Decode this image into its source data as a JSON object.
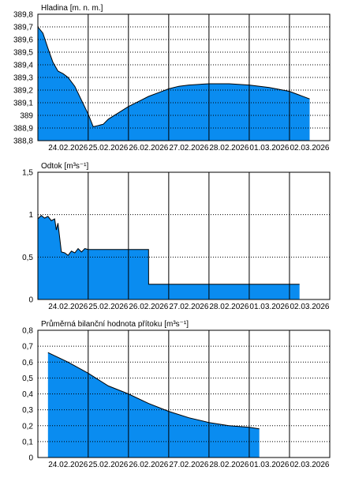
{
  "colors": {
    "fill": "#0a8cf0",
    "line": "#000000",
    "grid": "#000000",
    "background": "#ffffff"
  },
  "chart_data": [
    {
      "type": "area",
      "title": "Hladina [m. n. m.]",
      "ylim": [
        388.8,
        389.8
      ],
      "yticks": [
        "388,8",
        "388,9",
        "389",
        "389,1",
        "389,2",
        "389,3",
        "389,4",
        "389,5",
        "389,6",
        "389,7",
        "389,8"
      ],
      "xticks": [
        "24.02.2026",
        "25.02.2026",
        "26.02.2026",
        "27.02.2026",
        "28.02.2026",
        "01.03.2026",
        "02.03.2026"
      ],
      "xlim": [
        "23.02.2026 18:00",
        "03.03.2026 00:00"
      ],
      "grid": true,
      "x": [
        "23.02.2026 18:00",
        "23.02.2026 21:00",
        "24.02.2026 00:00",
        "24.02.2026 03:00",
        "24.02.2026 06:00",
        "24.02.2026 09:00",
        "24.02.2026 12:00",
        "24.02.2026 16:00",
        "24.02.2026 20:00",
        "25.02.2026 00:00",
        "25.02.2026 03:00",
        "25.02.2026 06:00",
        "25.02.2026 09:00",
        "25.02.2026 12:00",
        "25.02.2026 18:00",
        "26.02.2026 00:00",
        "26.02.2026 06:00",
        "26.02.2026 12:00",
        "26.02.2026 18:00",
        "27.02.2026 00:00",
        "27.02.2026 06:00",
        "27.02.2026 12:00",
        "28.02.2026 00:00",
        "28.02.2026 12:00",
        "01.03.2026 00:00",
        "01.03.2026 12:00",
        "02.03.2026 00:00",
        "02.03.2026 06:00",
        "02.03.2026 12:00"
      ],
      "values": [
        389.7,
        389.65,
        389.53,
        389.42,
        389.35,
        389.33,
        389.3,
        389.23,
        389.12,
        389.01,
        388.91,
        388.92,
        388.93,
        388.97,
        389.02,
        389.07,
        389.11,
        389.15,
        389.18,
        389.21,
        389.23,
        389.24,
        389.25,
        389.25,
        389.24,
        389.22,
        389.19,
        389.16,
        389.13
      ]
    },
    {
      "type": "area",
      "title": "Odtok [m³s⁻¹]",
      "ylim": [
        0,
        1.5
      ],
      "yticks": [
        "0",
        "0,5",
        "1",
        "1,5"
      ],
      "xticks": [
        "24.02.2026",
        "25.02.2026",
        "26.02.2026",
        "27.02.2026",
        "28.02.2026",
        "01.03.2026",
        "02.03.2026"
      ],
      "xlim": [
        "23.02.2026 18:00",
        "03.03.2026 00:00"
      ],
      "grid": true,
      "x": [
        "23.02.2026 18:00",
        "23.02.2026 20:00",
        "23.02.2026 22:00",
        "24.02.2026 00:00",
        "24.02.2026 02:00",
        "24.02.2026 04:00",
        "24.02.2026 05:00",
        "24.02.2026 06:00",
        "24.02.2026 08:00",
        "24.02.2026 10:00",
        "24.02.2026 12:00",
        "24.02.2026 14:00",
        "24.02.2026 16:00",
        "24.02.2026 18:00",
        "24.02.2026 20:00",
        "24.02.2026 22:00",
        "25.02.2026 00:00",
        "25.02.2026 12:00",
        "26.02.2026 00:00",
        "26.02.2026 12:00",
        "26.02.2026 12:01",
        "27.02.2026 00:00",
        "27.02.2026 12:00",
        "28.02.2026 00:00",
        "28.02.2026 12:00",
        "01.03.2026 00:00",
        "01.03.2026 12:00",
        "02.03.2026 00:00",
        "02.03.2026 06:00"
      ],
      "values": [
        0.95,
        0.99,
        0.96,
        0.98,
        0.93,
        0.95,
        0.82,
        0.9,
        0.56,
        0.55,
        0.52,
        0.57,
        0.55,
        0.6,
        0.56,
        0.6,
        0.59,
        0.59,
        0.59,
        0.59,
        0.18,
        0.18,
        0.18,
        0.18,
        0.18,
        0.18,
        0.18,
        0.18,
        0.18
      ]
    },
    {
      "type": "area",
      "title": "Průměrná bilanční hodnota přítoku [m³s⁻¹]",
      "ylim": [
        0,
        0.8
      ],
      "yticks": [
        "0",
        "0,1",
        "0,2",
        "0,3",
        "0,4",
        "0,5",
        "0,6",
        "0,7",
        "0,8"
      ],
      "xticks": [
        "24.02.2026",
        "25.02.2026",
        "26.02.2026",
        "27.02.2026",
        "28.02.2026",
        "01.03.2026",
        "02.03.2026"
      ],
      "xlim": [
        "23.02.2026 18:00",
        "03.03.2026 00:00"
      ],
      "grid": true,
      "x": [
        "24.02.2026 00:00",
        "24.02.2026 12:00",
        "25.02.2026 00:00",
        "25.02.2026 06:00",
        "25.02.2026 12:00",
        "26.02.2026 00:00",
        "26.02.2026 12:00",
        "27.02.2026 00:00",
        "27.02.2026 12:00",
        "28.02.2026 00:00",
        "28.02.2026 12:00",
        "01.03.2026 00:00",
        "01.03.2026 06:00"
      ],
      "values": [
        0.66,
        0.6,
        0.53,
        0.49,
        0.45,
        0.4,
        0.34,
        0.29,
        0.25,
        0.22,
        0.2,
        0.19,
        0.18
      ]
    }
  ]
}
